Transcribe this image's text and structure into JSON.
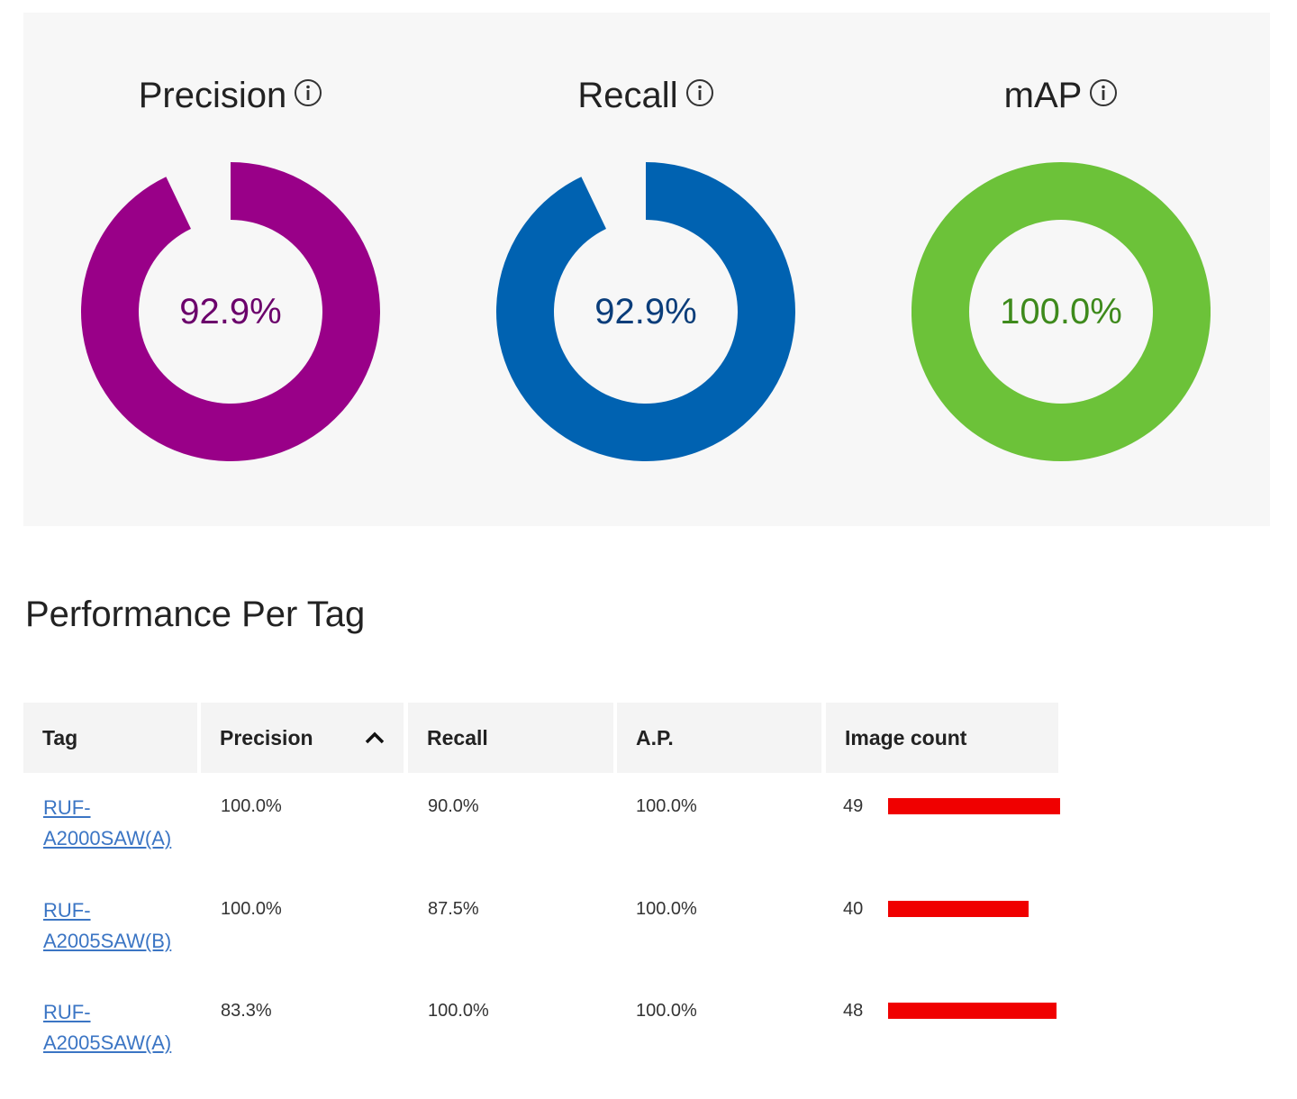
{
  "metrics": {
    "precision": {
      "label": "Precision",
      "value_text": "92.9%",
      "value": 92.9,
      "color": "#990088",
      "text_color": "#6b006b"
    },
    "recall": {
      "label": "Recall",
      "value_text": "92.9%",
      "value": 92.9,
      "color": "#0062b1",
      "text_color": "#0a3d7a"
    },
    "map": {
      "label": "mAP",
      "value_text": "100.0%",
      "value": 100.0,
      "color": "#6cc239",
      "text_color": "#3e8a1c"
    }
  },
  "section_title": "Performance Per Tag",
  "table": {
    "columns": [
      "Tag",
      "Precision",
      "Recall",
      "A.P.",
      "Image count"
    ],
    "sorted_column": "Precision",
    "bar_color": "#f00000",
    "rows": [
      {
        "tag": "RUF-A2000SAW(A)",
        "precision": "100.0%",
        "recall": "90.0%",
        "ap": "100.0%",
        "image_count": "49",
        "count": 49
      },
      {
        "tag": "RUF-A2005SAW(B)",
        "precision": "100.0%",
        "recall": "87.5%",
        "ap": "100.0%",
        "image_count": "40",
        "count": 40
      },
      {
        "tag": "RUF-A2005SAW(A)",
        "precision": "83.3%",
        "recall": "100.0%",
        "ap": "100.0%",
        "image_count": "48",
        "count": 48
      }
    ]
  }
}
